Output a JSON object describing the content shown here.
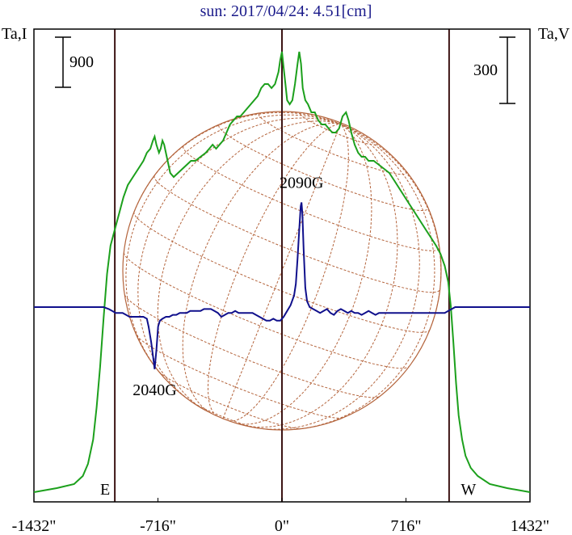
{
  "chart_data": {
    "type": "line",
    "title": "sun: 2017/04/24: 4.51[cm]",
    "x_unit": "arcsec",
    "xlim": [
      -1432,
      1432
    ],
    "x_ticks": [
      {
        "value": -1432,
        "label": "-1432\""
      },
      {
        "value": -716,
        "label": "-716\""
      },
      {
        "value": 0,
        "label": "0\""
      },
      {
        "value": 716,
        "label": "716\""
      },
      {
        "value": 1432,
        "label": "1432\""
      }
    ],
    "left_axis_label": "Ta,I",
    "right_axis_label": "Ta,V",
    "left_scale_bar": "900",
    "right_scale_bar": "300",
    "limb_markers": [
      {
        "x": -965,
        "label": "E"
      },
      {
        "x": 0,
        "label": ""
      },
      {
        "x": 965,
        "label": "W"
      }
    ],
    "colors": {
      "title": "#1a1a8a",
      "intensity": "#1ca01c",
      "polarization": "#10108c",
      "disk": "#b4643c",
      "limb_lines": "#3c1414",
      "frame": "#000000"
    },
    "series": [
      {
        "key": "I",
        "color": "#1ca01c",
        "unit": "relative",
        "points": [
          [
            -1432,
            0.01
          ],
          [
            -1300,
            0.02
          ],
          [
            -1200,
            0.03
          ],
          [
            -1150,
            0.05
          ],
          [
            -1120,
            0.08
          ],
          [
            -1090,
            0.14
          ],
          [
            -1070,
            0.22
          ],
          [
            -1050,
            0.32
          ],
          [
            -1030,
            0.44
          ],
          [
            -1010,
            0.55
          ],
          [
            -990,
            0.62
          ],
          [
            -965,
            0.66
          ],
          [
            -940,
            0.7
          ],
          [
            -915,
            0.74
          ],
          [
            -890,
            0.77
          ],
          [
            -860,
            0.79
          ],
          [
            -830,
            0.81
          ],
          [
            -800,
            0.83
          ],
          [
            -780,
            0.85
          ],
          [
            -760,
            0.86
          ],
          [
            -745,
            0.88
          ],
          [
            -735,
            0.89
          ],
          [
            -725,
            0.87
          ],
          [
            -710,
            0.85
          ],
          [
            -700,
            0.86
          ],
          [
            -690,
            0.88
          ],
          [
            -680,
            0.87
          ],
          [
            -665,
            0.84
          ],
          [
            -645,
            0.8
          ],
          [
            -625,
            0.79
          ],
          [
            -600,
            0.8
          ],
          [
            -575,
            0.81
          ],
          [
            -550,
            0.82
          ],
          [
            -525,
            0.83
          ],
          [
            -500,
            0.83
          ],
          [
            -470,
            0.84
          ],
          [
            -440,
            0.85
          ],
          [
            -420,
            0.86
          ],
          [
            -400,
            0.87
          ],
          [
            -380,
            0.86
          ],
          [
            -360,
            0.87
          ],
          [
            -340,
            0.88
          ],
          [
            -320,
            0.9
          ],
          [
            -300,
            0.92
          ],
          [
            -280,
            0.93
          ],
          [
            -260,
            0.94
          ],
          [
            -240,
            0.94
          ],
          [
            -220,
            0.95
          ],
          [
            -200,
            0.96
          ],
          [
            -180,
            0.97
          ],
          [
            -160,
            0.98
          ],
          [
            -140,
            0.99
          ],
          [
            -120,
            1.01
          ],
          [
            -100,
            1.02
          ],
          [
            -80,
            1.02
          ],
          [
            -60,
            1.01
          ],
          [
            -40,
            1.02
          ],
          [
            -20,
            1.05
          ],
          [
            -10,
            1.08
          ],
          [
            0,
            1.1
          ],
          [
            10,
            1.06
          ],
          [
            20,
            1.02
          ],
          [
            30,
            0.98
          ],
          [
            45,
            0.97
          ],
          [
            60,
            0.98
          ],
          [
            75,
            1.02
          ],
          [
            90,
            1.07
          ],
          [
            100,
            1.1
          ],
          [
            110,
            1.07
          ],
          [
            120,
            1.01
          ],
          [
            135,
            0.98
          ],
          [
            150,
            0.97
          ],
          [
            170,
            0.95
          ],
          [
            190,
            0.95
          ],
          [
            210,
            0.93
          ],
          [
            230,
            0.92
          ],
          [
            250,
            0.92
          ],
          [
            270,
            0.91
          ],
          [
            290,
            0.9
          ],
          [
            310,
            0.9
          ],
          [
            330,
            0.91
          ],
          [
            350,
            0.94
          ],
          [
            370,
            0.95
          ],
          [
            385,
            0.93
          ],
          [
            400,
            0.9
          ],
          [
            420,
            0.87
          ],
          [
            440,
            0.85
          ],
          [
            460,
            0.84
          ],
          [
            480,
            0.84
          ],
          [
            500,
            0.83
          ],
          [
            530,
            0.83
          ],
          [
            560,
            0.82
          ],
          [
            590,
            0.81
          ],
          [
            620,
            0.8
          ],
          [
            650,
            0.78
          ],
          [
            680,
            0.76
          ],
          [
            710,
            0.74
          ],
          [
            740,
            0.72
          ],
          [
            770,
            0.7
          ],
          [
            800,
            0.68
          ],
          [
            830,
            0.66
          ],
          [
            860,
            0.64
          ],
          [
            890,
            0.62
          ],
          [
            915,
            0.6
          ],
          [
            940,
            0.57
          ],
          [
            960,
            0.53
          ],
          [
            975,
            0.47
          ],
          [
            990,
            0.38
          ],
          [
            1005,
            0.28
          ],
          [
            1020,
            0.2
          ],
          [
            1040,
            0.14
          ],
          [
            1060,
            0.1
          ],
          [
            1090,
            0.07
          ],
          [
            1130,
            0.05
          ],
          [
            1200,
            0.03
          ],
          [
            1300,
            0.02
          ],
          [
            1432,
            0.01
          ]
        ]
      },
      {
        "key": "V",
        "color": "#10108c",
        "unit": "relative",
        "points": [
          [
            -1432,
            0.0
          ],
          [
            -1300,
            0.0
          ],
          [
            -1200,
            0.0
          ],
          [
            -1100,
            0.0
          ],
          [
            -1030,
            0.0
          ],
          [
            -1000,
            -0.01
          ],
          [
            -980,
            -0.02
          ],
          [
            -960,
            -0.03
          ],
          [
            -940,
            -0.03
          ],
          [
            -920,
            -0.03
          ],
          [
            -900,
            -0.04
          ],
          [
            -880,
            -0.05
          ],
          [
            -860,
            -0.05
          ],
          [
            -840,
            -0.05
          ],
          [
            -820,
            -0.05
          ],
          [
            -800,
            -0.05
          ],
          [
            -780,
            -0.06
          ],
          [
            -770,
            -0.1
          ],
          [
            -755,
            -0.18
          ],
          [
            -745,
            -0.25
          ],
          [
            -735,
            -0.32
          ],
          [
            -725,
            -0.22
          ],
          [
            -715,
            -0.1
          ],
          [
            -705,
            -0.07
          ],
          [
            -690,
            -0.06
          ],
          [
            -670,
            -0.05
          ],
          [
            -650,
            -0.05
          ],
          [
            -630,
            -0.04
          ],
          [
            -610,
            -0.04
          ],
          [
            -590,
            -0.03
          ],
          [
            -570,
            -0.03
          ],
          [
            -550,
            -0.03
          ],
          [
            -530,
            -0.02
          ],
          [
            -510,
            -0.02
          ],
          [
            -490,
            -0.02
          ],
          [
            -470,
            -0.02
          ],
          [
            -450,
            -0.01
          ],
          [
            -430,
            -0.01
          ],
          [
            -410,
            -0.01
          ],
          [
            -390,
            -0.02
          ],
          [
            -370,
            -0.03
          ],
          [
            -350,
            -0.05
          ],
          [
            -330,
            -0.04
          ],
          [
            -310,
            -0.03
          ],
          [
            -290,
            -0.03
          ],
          [
            -270,
            -0.02
          ],
          [
            -250,
            -0.03
          ],
          [
            -230,
            -0.03
          ],
          [
            -210,
            -0.03
          ],
          [
            -190,
            -0.03
          ],
          [
            -170,
            -0.03
          ],
          [
            -150,
            -0.04
          ],
          [
            -130,
            -0.05
          ],
          [
            -110,
            -0.06
          ],
          [
            -90,
            -0.07
          ],
          [
            -70,
            -0.07
          ],
          [
            -50,
            -0.06
          ],
          [
            -30,
            -0.07
          ],
          [
            -10,
            -0.07
          ],
          [
            10,
            -0.05
          ],
          [
            30,
            -0.02
          ],
          [
            50,
            0.01
          ],
          [
            70,
            0.06
          ],
          [
            80,
            0.12
          ],
          [
            90,
            0.25
          ],
          [
            100,
            0.4
          ],
          [
            108,
            0.52
          ],
          [
            113,
            0.54
          ],
          [
            118,
            0.48
          ],
          [
            125,
            0.3
          ],
          [
            135,
            0.1
          ],
          [
            145,
            0.03
          ],
          [
            160,
            0.0
          ],
          [
            180,
            -0.01
          ],
          [
            200,
            -0.02
          ],
          [
            220,
            -0.03
          ],
          [
            240,
            -0.02
          ],
          [
            260,
            -0.01
          ],
          [
            280,
            -0.03
          ],
          [
            300,
            -0.04
          ],
          [
            320,
            -0.02
          ],
          [
            340,
            -0.01
          ],
          [
            360,
            -0.02
          ],
          [
            380,
            -0.03
          ],
          [
            400,
            -0.02
          ],
          [
            420,
            -0.03
          ],
          [
            440,
            -0.03
          ],
          [
            460,
            -0.04
          ],
          [
            480,
            -0.03
          ],
          [
            500,
            -0.02
          ],
          [
            520,
            -0.03
          ],
          [
            540,
            -0.04
          ],
          [
            560,
            -0.03
          ],
          [
            580,
            -0.03
          ],
          [
            600,
            -0.03
          ],
          [
            620,
            -0.03
          ],
          [
            640,
            -0.03
          ],
          [
            660,
            -0.03
          ],
          [
            680,
            -0.03
          ],
          [
            700,
            -0.03
          ],
          [
            720,
            -0.03
          ],
          [
            740,
            -0.03
          ],
          [
            760,
            -0.03
          ],
          [
            780,
            -0.03
          ],
          [
            800,
            -0.03
          ],
          [
            820,
            -0.03
          ],
          [
            840,
            -0.03
          ],
          [
            860,
            -0.03
          ],
          [
            880,
            -0.03
          ],
          [
            900,
            -0.03
          ],
          [
            920,
            -0.03
          ],
          [
            940,
            -0.03
          ],
          [
            960,
            -0.02
          ],
          [
            980,
            -0.01
          ],
          [
            1000,
            0.0
          ],
          [
            1050,
            0.0
          ],
          [
            1150,
            0.0
          ],
          [
            1250,
            0.0
          ],
          [
            1350,
            0.0
          ],
          [
            1432,
            0.0
          ]
        ]
      }
    ],
    "annotations": [
      {
        "text": "2090G",
        "x": 113,
        "series": "V"
      },
      {
        "text": "2040G",
        "x": -735,
        "series": "V"
      }
    ]
  }
}
